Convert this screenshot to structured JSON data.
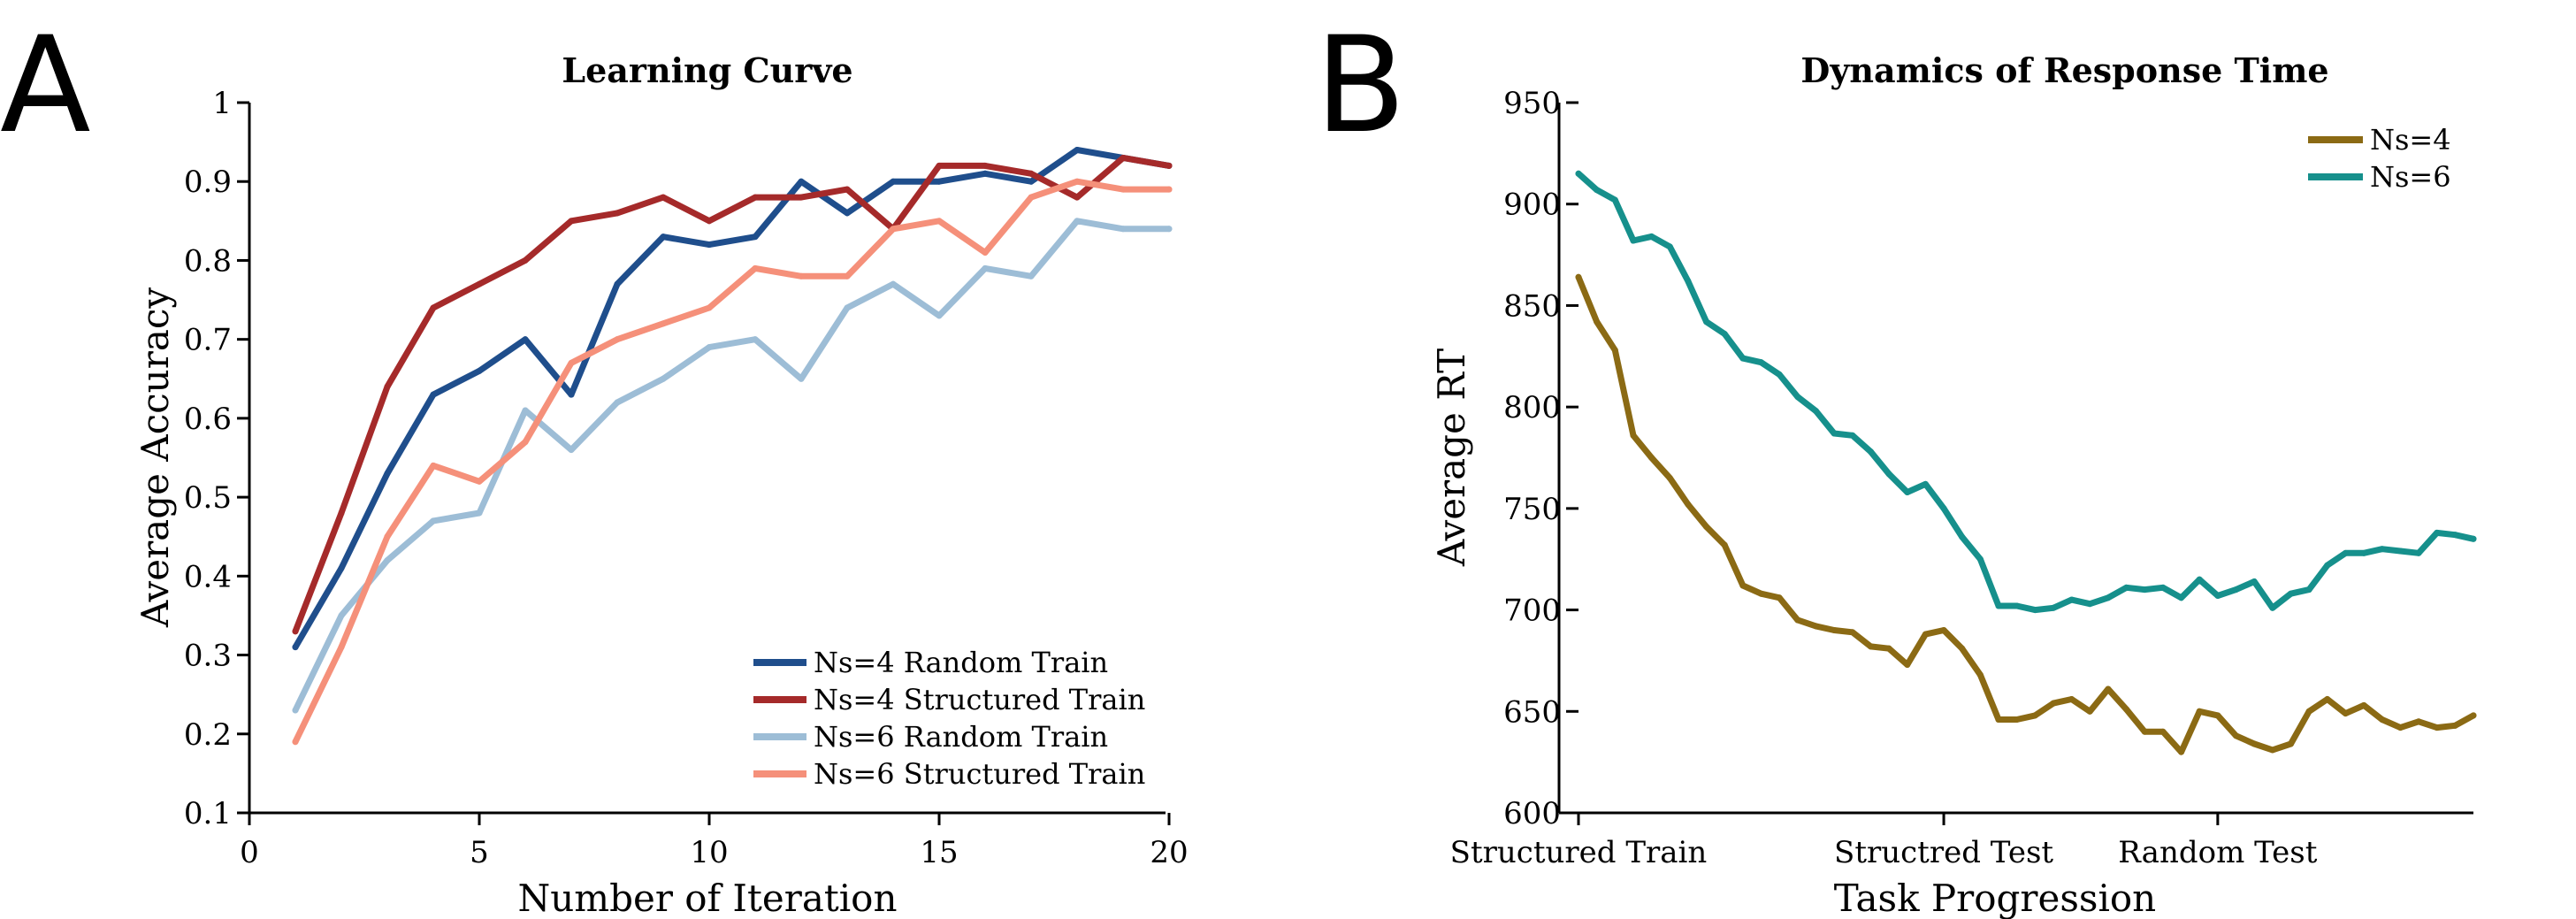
{
  "chart_data": [
    {
      "panel_label": "A",
      "type": "line",
      "title": "Learning Curve",
      "xlabel": "Number of Iteration",
      "ylabel": "Average Accuracy",
      "xlim": [
        0,
        20
      ],
      "ylim": [
        0.1,
        1
      ],
      "x_ticks": [
        0,
        5,
        10,
        15,
        20
      ],
      "x_tick_labels": [
        "0",
        "5",
        "10",
        "15",
        "20"
      ],
      "y_ticks": [
        0.1,
        0.2,
        0.3,
        0.4,
        0.5,
        0.6,
        0.7,
        0.8,
        0.9,
        1
      ],
      "y_tick_labels": [
        "0.1",
        "0.2",
        "0.3",
        "0.4",
        "0.5",
        "0.6",
        "0.7",
        "0.8",
        "0.9",
        "1"
      ],
      "grid": false,
      "legend_position": "bottom-right",
      "x": [
        1,
        2,
        3,
        4,
        5,
        6,
        7,
        8,
        9,
        10,
        11,
        12,
        13,
        14,
        15,
        16,
        17,
        18,
        19,
        20
      ],
      "series": [
        {
          "name": "Ns=4 Random Train",
          "color": "#1f4e8c",
          "values": [
            0.31,
            0.41,
            0.53,
            0.63,
            0.66,
            0.7,
            0.63,
            0.77,
            0.83,
            0.82,
            0.83,
            0.9,
            0.86,
            0.9,
            0.9,
            0.91,
            0.9,
            0.94,
            0.93,
            0.92
          ]
        },
        {
          "name": "Ns=4 Structured Train",
          "color": "#a52a2a",
          "values": [
            0.33,
            0.48,
            0.64,
            0.74,
            0.77,
            0.8,
            0.85,
            0.86,
            0.88,
            0.85,
            0.88,
            0.88,
            0.89,
            0.84,
            0.92,
            0.92,
            0.91,
            0.88,
            0.93,
            0.92
          ]
        },
        {
          "name": "Ns=6 Random Train",
          "color": "#9dbdd6",
          "values": [
            0.23,
            0.35,
            0.42,
            0.47,
            0.48,
            0.61,
            0.56,
            0.62,
            0.65,
            0.69,
            0.7,
            0.65,
            0.74,
            0.77,
            0.73,
            0.79,
            0.78,
            0.85,
            0.84,
            0.84
          ]
        },
        {
          "name": "Ns=6 Structured Train",
          "color": "#f5907a",
          "values": [
            0.19,
            0.31,
            0.45,
            0.54,
            0.52,
            0.57,
            0.67,
            0.7,
            0.72,
            0.74,
            0.79,
            0.78,
            0.78,
            0.84,
            0.85,
            0.81,
            0.88,
            0.9,
            0.89,
            0.89
          ]
        }
      ]
    },
    {
      "panel_label": "B",
      "type": "line",
      "title": "Dynamics of Response Time",
      "xlabel": "Task Progression",
      "ylabel": "Average RT",
      "ylim": [
        600,
        950
      ],
      "y_ticks": [
        600,
        650,
        700,
        750,
        800,
        850,
        900,
        950
      ],
      "y_tick_labels": [
        "600",
        "650",
        "700",
        "750",
        "800",
        "850",
        "900",
        "950"
      ],
      "xlim": [
        0,
        49
      ],
      "x_ticks": [
        0,
        20,
        35
      ],
      "x_tick_labels": [
        "Structured Train",
        "Structred Test",
        "Random Test"
      ],
      "grid": false,
      "legend_position": "top-right",
      "x": [
        0,
        1,
        2,
        3,
        4,
        5,
        6,
        7,
        8,
        9,
        10,
        11,
        12,
        13,
        14,
        15,
        16,
        17,
        18,
        19,
        20,
        21,
        22,
        23,
        24,
        25,
        26,
        27,
        28,
        29,
        30,
        31,
        32,
        33,
        34,
        35,
        36,
        37,
        38,
        39,
        40,
        41,
        42,
        43,
        44,
        45,
        46,
        47,
        48,
        49
      ],
      "series": [
        {
          "name": "Ns=4",
          "color": "#8b6a14",
          "values": [
            864,
            842,
            828,
            786,
            775,
            765,
            752,
            741,
            732,
            712,
            708,
            706,
            695,
            692,
            690,
            689,
            682,
            681,
            673,
            688,
            690,
            681,
            668,
            646,
            646,
            648,
            654,
            656,
            650,
            661,
            651,
            640,
            640,
            630,
            650,
            648,
            638,
            634,
            631,
            634,
            650,
            656,
            649,
            653,
            646,
            642,
            645,
            642,
            643,
            648
          ]
        },
        {
          "name": "Ns=6",
          "color": "#16908c",
          "values": [
            915,
            907,
            902,
            882,
            884,
            879,
            862,
            842,
            836,
            824,
            822,
            816,
            805,
            798,
            787,
            786,
            778,
            767,
            758,
            762,
            750,
            736,
            725,
            702,
            702,
            700,
            701,
            705,
            703,
            706,
            711,
            710,
            711,
            706,
            715,
            707,
            710,
            714,
            701,
            708,
            710,
            722,
            728,
            728,
            730,
            729,
            728,
            738,
            737,
            735
          ]
        }
      ]
    }
  ]
}
